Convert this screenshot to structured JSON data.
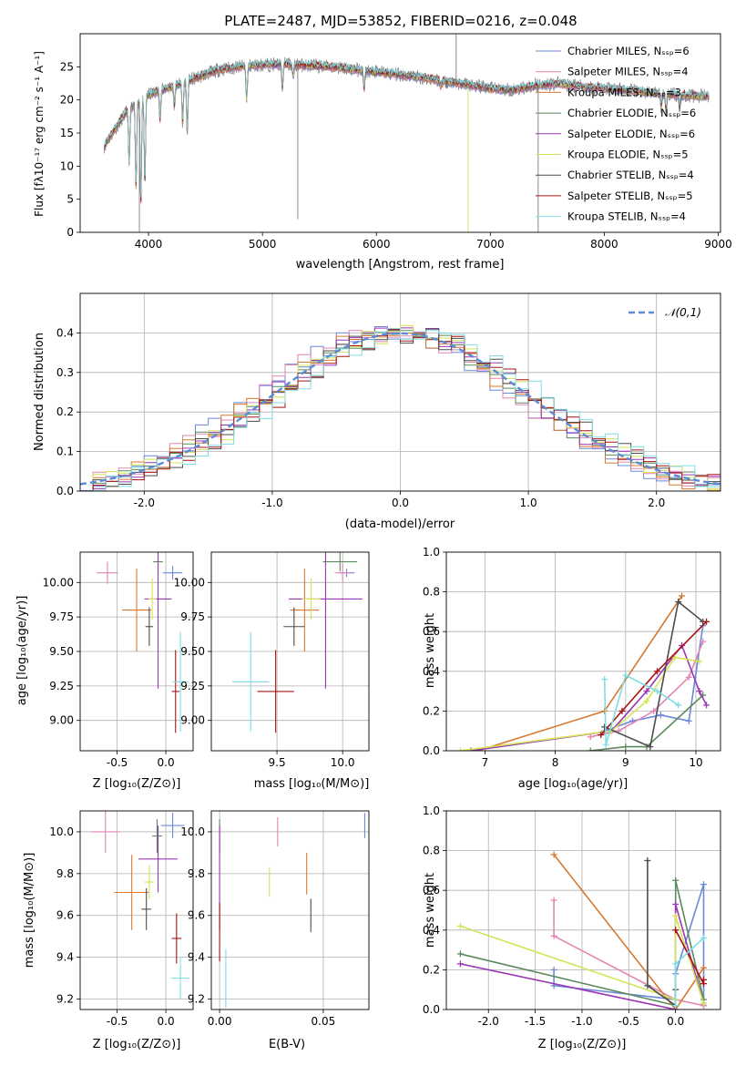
{
  "figure_title": "PLATE=2487, MJD=53852, FIBERID=0216, z=0.048",
  "colors": [
    "#6a89d8",
    "#e285b4",
    "#d8792f",
    "#5c8a5c",
    "#9b36b5",
    "#d4e456",
    "#4d4d4d",
    "#a81313",
    "#7fdde3"
  ],
  "chart_data": [
    {
      "id": "spectrum",
      "type": "line",
      "xlabel": "wavelength [Angstrom, rest frame]",
      "ylabel": "Flux [fλ10⁻¹⁷ erg cm⁻² s⁻¹ A⁻¹]",
      "xlim": [
        3400,
        9020
      ],
      "ylim": [
        0,
        30
      ],
      "xticks": [
        4000,
        5000,
        6000,
        7000,
        8000,
        9000
      ],
      "yticks": [
        0,
        5,
        10,
        15,
        20,
        25
      ],
      "data_color": "#7f7f7f",
      "data_trend": [
        [
          3610,
          13.0
        ],
        [
          3700,
          15.5
        ],
        [
          3800,
          18.0
        ],
        [
          3900,
          19.5
        ],
        [
          4000,
          20.8
        ],
        [
          4200,
          22.0
        ],
        [
          4400,
          23.2
        ],
        [
          4600,
          24.5
        ],
        [
          4800,
          25.0
        ],
        [
          5000,
          25.3
        ],
        [
          5200,
          25.4
        ],
        [
          5400,
          25.2
        ],
        [
          5600,
          25.0
        ],
        [
          5800,
          24.6
        ],
        [
          6000,
          24.2
        ],
        [
          6200,
          23.8
        ],
        [
          6400,
          23.4
        ],
        [
          6600,
          22.8
        ],
        [
          6800,
          22.3
        ],
        [
          7000,
          21.7
        ],
        [
          7200,
          21.5
        ],
        [
          7400,
          22.2
        ],
        [
          7600,
          22.5
        ],
        [
          7800,
          22.0
        ],
        [
          8000,
          21.7
        ],
        [
          8200,
          21.5
        ],
        [
          8400,
          21.1
        ],
        [
          8600,
          20.8
        ],
        [
          8800,
          20.6
        ],
        [
          8920,
          20.5
        ]
      ],
      "absorption_lines": [
        [
          3830,
          10.5
        ],
        [
          3890,
          7.0
        ],
        [
          3933,
          4.5
        ],
        [
          3968,
          7.5
        ],
        [
          4102,
          17.0
        ],
        [
          4227,
          19.0
        ],
        [
          4300,
          16.5
        ],
        [
          4340,
          15.0
        ],
        [
          4861,
          20.0
        ],
        [
          5175,
          21.8
        ],
        [
          5270,
          23.5
        ],
        [
          5892,
          21.5
        ],
        [
          6563,
          22.0
        ],
        [
          8500,
          19.0
        ],
        [
          8542,
          18.5
        ],
        [
          8662,
          18.8
        ]
      ],
      "series": [
        {
          "name": "Chabrier MILES, Nₛₛₚ=6"
        },
        {
          "name": "Salpeter MILES, Nₛₛₚ=4"
        },
        {
          "name": "Kroupa MILES, Nₛₛₚ=3"
        },
        {
          "name": "Chabrier ELODIE, Nₛₛₚ=6"
        },
        {
          "name": "Salpeter ELODIE, Nₛₛₚ=6"
        },
        {
          "name": "Kroupa ELODIE, Nₛₛₚ=5"
        },
        {
          "name": "Chabrier STELIB, Nₛₛₚ=4"
        },
        {
          "name": "Salpeter STELIB, Nₛₛₚ=5"
        },
        {
          "name": "Kroupa STELIB, Nₛₛₚ=4"
        }
      ],
      "legend": "top-right",
      "grid": false
    },
    {
      "id": "residuals",
      "type": "line",
      "xlabel": "(data-model)/error",
      "ylabel": "Normed distribution",
      "xlim": [
        -2.5,
        2.5
      ],
      "ylim": [
        0,
        0.5
      ],
      "xticks": [
        -2,
        -1,
        0,
        1,
        2
      ],
      "yticks": [
        0.0,
        0.1,
        0.2,
        0.3,
        0.4
      ],
      "bin_width": 0.1,
      "series": [
        {
          "name": "𝒩(0,1)",
          "mean": 0,
          "sigma": 1,
          "color": "#5b8bd6",
          "style": "dashed"
        }
      ],
      "legend": "top-right",
      "grid": true
    },
    {
      "id": "age_vs_Z",
      "type": "scatter",
      "xlabel": "Z [log₁₀(Z/Z⊙)]",
      "ylabel": "age  [log₁₀(age/yr)]",
      "xlim": [
        -0.88,
        0.28
      ],
      "ylim": [
        8.78,
        10.22
      ],
      "xticks": [
        -0.5,
        0.0
      ],
      "yticks": [
        9.0,
        9.25,
        9.5,
        9.75,
        10.0
      ],
      "points": [
        {
          "x": 0.07,
          "y": 10.07,
          "xerr": 0.1,
          "yerr": 0.05
        },
        {
          "x": -0.6,
          "y": 10.07,
          "xerr": 0.11,
          "yerr": 0.08
        },
        {
          "x": -0.3,
          "y": 9.8,
          "xerr": 0.15,
          "yerr": 0.3
        },
        {
          "x": -0.08,
          "y": 10.15,
          "xerr": 0.05,
          "yerr": 0.07
        },
        {
          "x": -0.08,
          "y": 9.88,
          "xerr": 0.14,
          "yerr": 0.65
        },
        {
          "x": -0.14,
          "y": 9.88,
          "xerr": 0.04,
          "yerr": 0.15
        },
        {
          "x": -0.17,
          "y": 9.68,
          "xerr": 0.04,
          "yerr": 0.14
        },
        {
          "x": 0.1,
          "y": 9.21,
          "xerr": 0.04,
          "yerr": 0.3
        },
        {
          "x": 0.15,
          "y": 9.28,
          "xerr": 0.08,
          "yerr": 0.36
        }
      ],
      "grid": true
    },
    {
      "id": "age_vs_mass",
      "type": "scatter",
      "xlabel": "mass [log₁₀(M/M⊙)]",
      "ylabel": "",
      "xlim": [
        9.0,
        10.2
      ],
      "ylim": [
        8.78,
        10.22
      ],
      "xticks": [
        9.5,
        10.0
      ],
      "yticks": [
        9.0,
        9.25,
        9.5,
        9.75,
        10.0
      ],
      "points": [
        {
          "x": 10.03,
          "y": 10.07,
          "xerr": 0.06,
          "yerr": 0.03
        },
        {
          "x": 10.0,
          "y": 10.07,
          "xerr": 0.06,
          "yerr": 0.07
        },
        {
          "x": 9.71,
          "y": 9.8,
          "xerr": 0.11,
          "yerr": 0.3
        },
        {
          "x": 9.98,
          "y": 10.15,
          "xerr": 0.13,
          "yerr": 0.07
        },
        {
          "x": 9.87,
          "y": 9.88,
          "xerr": 0.28,
          "yerr": 0.65
        },
        {
          "x": 9.76,
          "y": 9.88,
          "xerr": 0.07,
          "yerr": 0.15
        },
        {
          "x": 9.63,
          "y": 9.68,
          "xerr": 0.08,
          "yerr": 0.14
        },
        {
          "x": 9.49,
          "y": 9.21,
          "xerr": 0.14,
          "yerr": 0.3
        },
        {
          "x": 9.3,
          "y": 9.28,
          "xerr": 0.14,
          "yerr": 0.36
        }
      ],
      "grid": true
    },
    {
      "id": "weight_vs_age",
      "type": "line",
      "xlabel": "age  [log₁₀(age/yr)]",
      "ylabel": "mass weight",
      "xlim": [
        6.45,
        10.35
      ],
      "ylim": [
        0,
        1.0
      ],
      "xticks": [
        7,
        8,
        9,
        10
      ],
      "yticks": [
        0.0,
        0.2,
        0.4,
        0.6,
        0.8,
        1.0
      ],
      "series": [
        {
          "points": [
            [
              8.7,
              0.1
            ],
            [
              9.1,
              0.15
            ],
            [
              9.5,
              0.18
            ],
            [
              9.9,
              0.15
            ],
            [
              10.1,
              0.63
            ]
          ]
        },
        {
          "points": [
            [
              8.5,
              0.07
            ],
            [
              8.9,
              0.1
            ],
            [
              9.4,
              0.2
            ],
            [
              9.9,
              0.37
            ],
            [
              10.1,
              0.55
            ]
          ]
        },
        {
          "points": [
            [
              6.9,
              0.0
            ],
            [
              8.7,
              0.2
            ],
            [
              9.8,
              0.78
            ]
          ]
        },
        {
          "points": [
            [
              8.5,
              0.0
            ],
            [
              9.0,
              0.02
            ],
            [
              9.3,
              0.02
            ],
            [
              10.1,
              0.28
            ]
          ]
        },
        {
          "points": [
            [
              6.8,
              0.0
            ],
            [
              8.8,
              0.1
            ],
            [
              9.3,
              0.3
            ],
            [
              9.8,
              0.53
            ],
            [
              10.05,
              0.3
            ],
            [
              10.15,
              0.23
            ]
          ]
        },
        {
          "points": [
            [
              6.65,
              0.0
            ],
            [
              8.8,
              0.1
            ],
            [
              9.3,
              0.25
            ],
            [
              9.7,
              0.47
            ],
            [
              10.05,
              0.45
            ]
          ]
        },
        {
          "points": [
            [
              8.7,
              0.12
            ],
            [
              9.35,
              0.02
            ],
            [
              9.75,
              0.75
            ],
            [
              10.1,
              0.65
            ]
          ]
        },
        {
          "points": [
            [
              8.65,
              0.08
            ],
            [
              8.95,
              0.2
            ],
            [
              9.45,
              0.4
            ],
            [
              10.15,
              0.65
            ]
          ]
        },
        {
          "points": [
            [
              8.7,
              0.36
            ],
            [
              8.72,
              0.03
            ],
            [
              9.0,
              0.38
            ],
            [
              9.45,
              0.3
            ],
            [
              9.75,
              0.23
            ]
          ]
        }
      ],
      "grid": true
    },
    {
      "id": "mass_vs_Z",
      "type": "scatter",
      "xlabel": "Z [log₁₀(Z/Z⊙)]",
      "ylabel": "mass [log₁₀(M/M⊙)]",
      "xlim": [
        -0.88,
        0.28
      ],
      "ylim": [
        9.15,
        10.1
      ],
      "xticks": [
        -0.5,
        0.0
      ],
      "yticks": [
        9.2,
        9.4,
        9.6,
        9.8,
        10.0
      ],
      "points": [
        {
          "x": 0.07,
          "y": 10.03,
          "xerr": 0.12,
          "yerr": 0.06
        },
        {
          "x": -0.62,
          "y": 10.0,
          "xerr": 0.15,
          "yerr": 0.1
        },
        {
          "x": -0.35,
          "y": 9.71,
          "xerr": 0.18,
          "yerr": 0.18
        },
        {
          "x": -0.09,
          "y": 9.98,
          "xerr": 0.05,
          "yerr": 0.08
        },
        {
          "x": -0.08,
          "y": 9.87,
          "xerr": 0.2,
          "yerr": 0.16
        },
        {
          "x": -0.17,
          "y": 9.76,
          "xerr": 0.05,
          "yerr": 0.08
        },
        {
          "x": -0.2,
          "y": 9.63,
          "xerr": 0.05,
          "yerr": 0.1
        },
        {
          "x": 0.11,
          "y": 9.49,
          "xerr": 0.05,
          "yerr": 0.12
        },
        {
          "x": 0.15,
          "y": 9.3,
          "xerr": 0.09,
          "yerr": 0.1
        }
      ],
      "grid": true
    },
    {
      "id": "mass_vs_ebv",
      "type": "scatter",
      "xlabel": "E(B-V)",
      "ylabel": "",
      "xlim": [
        -0.004,
        0.072
      ],
      "ylim": [
        9.15,
        10.1
      ],
      "xticks": [
        0.0,
        0.05
      ],
      "yticks": [
        9.2,
        9.4,
        9.6,
        9.8,
        10.0
      ],
      "points": [
        {
          "x": 0.07,
          "y": 10.03,
          "xerr": 0,
          "yerr": 0.06
        },
        {
          "x": 0.028,
          "y": 10.0,
          "xerr": 0,
          "yerr": 0.07
        },
        {
          "x": 0.042,
          "y": 9.8,
          "xerr": 0,
          "yerr": 0.1
        },
        {
          "x": 0.0,
          "y": 9.98,
          "xerr": 0,
          "yerr": 0.08
        },
        {
          "x": 0.0,
          "y": 9.78,
          "xerr": 0,
          "yerr": 0.25
        },
        {
          "x": 0.024,
          "y": 9.76,
          "xerr": 0,
          "yerr": 0.07
        },
        {
          "x": 0.044,
          "y": 9.6,
          "xerr": 0,
          "yerr": 0.08
        },
        {
          "x": 0.0,
          "y": 9.52,
          "xerr": 0,
          "yerr": 0.14
        },
        {
          "x": 0.003,
          "y": 9.3,
          "xerr": 0,
          "yerr": 0.14
        }
      ],
      "grid": true
    },
    {
      "id": "weight_vs_Z",
      "type": "line",
      "xlabel": "Z [log₁₀(Z/Z⊙)]",
      "ylabel": "mass weight",
      "xlim": [
        -2.45,
        0.48
      ],
      "ylim": [
        0,
        1.0
      ],
      "xticks": [
        -2.0,
        -1.5,
        -1.0,
        -0.5,
        0.0
      ],
      "yticks": [
        0.0,
        0.2,
        0.4,
        0.6,
        0.8,
        1.0
      ],
      "series": [
        {
          "points": [
            [
              -1.3,
              0.2
            ],
            [
              -1.3,
              0.12
            ],
            [
              0.0,
              0.05
            ],
            [
              0.0,
              0.18
            ],
            [
              0.3,
              0.63
            ],
            [
              0.3,
              0.02
            ]
          ]
        },
        {
          "points": [
            [
              -1.3,
              0.55
            ],
            [
              -1.3,
              0.37
            ],
            [
              0.0,
              0.05
            ],
            [
              0.3,
              0.02
            ]
          ]
        },
        {
          "points": [
            [
              -1.3,
              0.78
            ],
            [
              0.0,
              0.0
            ],
            [
              0.3,
              0.21
            ]
          ]
        },
        {
          "points": [
            [
              -2.3,
              0.28
            ],
            [
              0.0,
              0.02
            ],
            [
              0.0,
              0.65
            ],
            [
              0.3,
              0.05
            ]
          ]
        },
        {
          "points": [
            [
              -2.3,
              0.23
            ],
            [
              0.0,
              0.0
            ],
            [
              0.0,
              0.53
            ],
            [
              0.3,
              0.03
            ]
          ]
        },
        {
          "points": [
            [
              -2.3,
              0.42
            ],
            [
              0.0,
              0.05
            ],
            [
              0.0,
              0.47
            ],
            [
              0.3,
              0.03
            ]
          ]
        },
        {
          "points": [
            [
              -0.3,
              0.75
            ],
            [
              -0.3,
              0.12
            ],
            [
              0.0,
              0.02
            ],
            [
              0.0,
              0.1
            ]
          ]
        },
        {
          "points": [
            [
              0.0,
              0.4
            ],
            [
              0.3,
              0.13
            ],
            [
              0.3,
              0.15
            ]
          ]
        },
        {
          "points": [
            [
              0.0,
              0.02
            ],
            [
              0.0,
              0.23
            ],
            [
              0.3,
              0.36
            ]
          ]
        }
      ],
      "grid": true
    }
  ]
}
